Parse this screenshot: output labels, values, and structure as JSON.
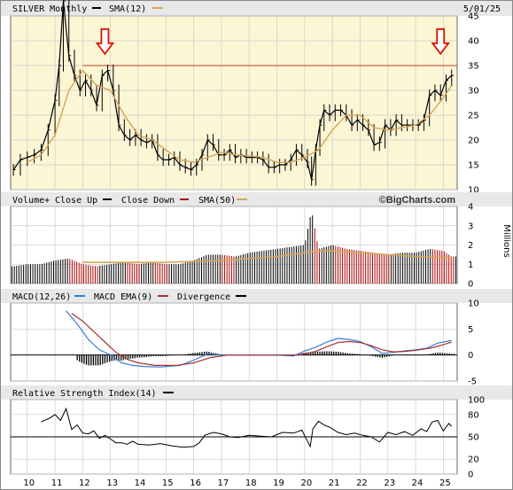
{
  "chart_data": [
    {
      "type": "line",
      "panel": "price",
      "title": "SILVER Monthly",
      "legend": [
        "SILVER Monthly",
        "SMA(12)"
      ],
      "date": "5/01/25",
      "ylim": [
        10,
        45
      ],
      "yticks": [
        10,
        15,
        20,
        25,
        30,
        35,
        40,
        45
      ],
      "xlim": [
        2009.4,
        2025.5
      ],
      "x_tick_labels": [
        "10",
        "11",
        "12",
        "13",
        "14",
        "15",
        "16",
        "17",
        "18",
        "19",
        "20",
        "21",
        "22",
        "23",
        "24",
        "25"
      ],
      "resistance_level": 35,
      "annotations": [
        {
          "type": "arrow",
          "x": 2012.8,
          "y": 37
        },
        {
          "type": "arrow",
          "x": 2024.9,
          "y": 37
        }
      ],
      "series": [
        {
          "name": "SILVER Monthly",
          "color": "#000000",
          "x": [
            2009.5,
            2009.75,
            2010.0,
            2010.25,
            2010.5,
            2010.75,
            2011.0,
            2011.15,
            2011.3,
            2011.5,
            2011.7,
            2011.9,
            2012.1,
            2012.3,
            2012.5,
            2012.7,
            2012.9,
            2013.1,
            2013.3,
            2013.5,
            2013.7,
            2013.9,
            2014.1,
            2014.3,
            2014.5,
            2014.7,
            2014.9,
            2015.1,
            2015.3,
            2015.5,
            2015.7,
            2015.9,
            2016.1,
            2016.3,
            2016.5,
            2016.7,
            2016.9,
            2017.1,
            2017.3,
            2017.5,
            2017.7,
            2017.9,
            2018.1,
            2018.3,
            2018.5,
            2018.7,
            2018.9,
            2019.1,
            2019.3,
            2019.5,
            2019.7,
            2019.9,
            2020.1,
            2020.25,
            2020.4,
            2020.55,
            2020.7,
            2020.9,
            2021.1,
            2021.3,
            2021.5,
            2021.7,
            2021.9,
            2022.1,
            2022.3,
            2022.5,
            2022.7,
            2022.9,
            2023.1,
            2023.3,
            2023.5,
            2023.7,
            2023.9,
            2024.1,
            2024.3,
            2024.5,
            2024.7,
            2024.9,
            2025.1,
            2025.3
          ],
          "y": [
            14,
            16,
            16.5,
            17,
            18,
            22,
            28,
            35,
            48,
            37,
            33,
            30,
            32,
            30,
            27,
            33,
            34,
            30,
            23,
            21,
            20,
            21,
            20,
            19.5,
            20,
            17,
            16,
            16,
            16.5,
            15,
            14.5,
            14,
            15,
            17,
            20,
            19,
            17,
            17,
            18,
            16.5,
            17,
            16.5,
            16.5,
            16.5,
            16,
            14.5,
            14.5,
            15,
            15,
            16,
            18,
            17,
            15.5,
            12,
            18,
            23,
            26,
            25,
            26,
            26,
            25,
            23,
            24,
            23,
            22,
            19,
            19.5,
            23,
            22,
            24,
            23,
            23,
            23,
            23,
            24,
            29,
            30,
            29,
            32,
            33
          ]
        },
        {
          "name": "SMA(12)",
          "color": "#d4a559",
          "x": [
            2010.0,
            2010.5,
            2011.0,
            2011.5,
            2012.0,
            2012.5,
            2013.0,
            2013.5,
            2014.0,
            2014.5,
            2015.0,
            2015.5,
            2016.0,
            2016.5,
            2017.0,
            2017.5,
            2018.0,
            2018.5,
            2019.0,
            2019.5,
            2020.0,
            2020.5,
            2021.0,
            2021.5,
            2022.0,
            2022.5,
            2023.0,
            2023.5,
            2024.0,
            2024.5,
            2025.0,
            2025.3
          ],
          "y": [
            15.5,
            17,
            21,
            30,
            34,
            31,
            30,
            25,
            21,
            20,
            18,
            16,
            15.5,
            16.5,
            17.5,
            17,
            16.8,
            16.5,
            15.5,
            15.5,
            16.5,
            18,
            22,
            25,
            25,
            22.5,
            22,
            22.5,
            23,
            25,
            28.5,
            31
          ]
        }
      ]
    },
    {
      "type": "bar",
      "panel": "volume",
      "title": "Volume+",
      "legend": [
        "Close Up",
        "Close Down",
        "SMA(50)"
      ],
      "watermark": "©BigCharts.com",
      "ylabel": "Millions",
      "ylim": [
        0,
        4
      ],
      "yticks": [
        0,
        1,
        2,
        3,
        4
      ],
      "xlim": [
        2009.4,
        2025.5
      ],
      "series": [
        {
          "name": "Volume",
          "color": "#000000",
          "x": [
            2009.5,
            2010.0,
            2010.5,
            2011.0,
            2011.5,
            2012.0,
            2012.5,
            2013.0,
            2013.5,
            2014.0,
            2014.5,
            2015.0,
            2015.5,
            2016.0,
            2016.5,
            2017.0,
            2017.5,
            2018.0,
            2018.5,
            2019.0,
            2019.5,
            2020.0,
            2020.25,
            2020.5,
            2021.0,
            2021.5,
            2022.0,
            2022.5,
            2023.0,
            2023.5,
            2024.0,
            2024.5,
            2025.0,
            2025.3
          ],
          "y": [
            0.9,
            1.0,
            1.0,
            1.2,
            1.3,
            1.0,
            0.9,
            1.0,
            1.1,
            1.0,
            1.1,
            1.0,
            1.0,
            1.2,
            1.5,
            1.5,
            1.4,
            1.6,
            1.7,
            1.8,
            1.9,
            2.0,
            3.8,
            1.8,
            2.0,
            1.8,
            1.7,
            1.6,
            1.5,
            1.6,
            1.6,
            1.8,
            1.7,
            1.4
          ]
        },
        {
          "name": "SMA(50)",
          "color": "#d4a559",
          "x": [
            2012.0,
            2013.0,
            2014.0,
            2015.0,
            2016.0,
            2017.0,
            2018.0,
            2019.0,
            2020.0,
            2020.5,
            2021.0,
            2022.0,
            2023.0,
            2024.0,
            2025.0,
            2025.3
          ],
          "y": [
            1.1,
            1.1,
            1.1,
            1.1,
            1.15,
            1.2,
            1.3,
            1.4,
            1.6,
            1.7,
            1.7,
            1.6,
            1.5,
            1.4,
            1.35,
            1.35
          ]
        }
      ]
    },
    {
      "type": "line",
      "panel": "macd",
      "title": "MACD(12,26)",
      "legend": [
        "MACD(12,26)",
        "MACD EMA(9)",
        "Divergence"
      ],
      "ylim": [
        -5,
        10
      ],
      "yticks": [
        -5,
        0,
        5,
        10
      ],
      "xlim": [
        2009.4,
        2025.5
      ],
      "series": [
        {
          "name": "MACD(12,26)",
          "color": "#3a7bd5",
          "x": [
            2011.4,
            2011.8,
            2012.2,
            2012.6,
            2013.0,
            2013.4,
            2013.8,
            2014.2,
            2014.8,
            2015.5,
            2016.0,
            2016.5,
            2017.0,
            2018.0,
            2019.0,
            2019.6,
            2020.0,
            2020.4,
            2020.8,
            2021.2,
            2021.6,
            2022.0,
            2022.4,
            2022.8,
            2023.2,
            2023.6,
            2024.0,
            2024.4,
            2024.8,
            2025.3
          ],
          "y": [
            8.5,
            6,
            3,
            1,
            0,
            -1.5,
            -2,
            -2.2,
            -2.3,
            -2,
            -1,
            0.2,
            0,
            0,
            0,
            -0.2,
            0.8,
            1.5,
            2.5,
            3.2,
            3.0,
            2.6,
            1.6,
            0.3,
            0.5,
            0.8,
            1.0,
            1.3,
            2.3,
            2.8
          ]
        },
        {
          "name": "MACD EMA(9)",
          "color": "#a83232",
          "x": [
            2011.6,
            2012.0,
            2012.4,
            2012.8,
            2013.2,
            2013.6,
            2014.0,
            2014.6,
            2015.4,
            2016.0,
            2016.6,
            2017.2,
            2018.0,
            2019.0,
            2019.8,
            2020.4,
            2020.8,
            2021.2,
            2021.6,
            2022.0,
            2022.4,
            2022.8,
            2023.2,
            2023.6,
            2024.0,
            2024.6,
            2025.0,
            2025.3
          ],
          "y": [
            8,
            6.5,
            4.5,
            2.5,
            0.5,
            -0.8,
            -1.5,
            -2,
            -2,
            -1.5,
            -0.5,
            0,
            0,
            0,
            0,
            0.7,
            1.6,
            2.4,
            2.6,
            2.4,
            1.8,
            1.0,
            0.6,
            0.7,
            0.9,
            1.4,
            2.0,
            2.5
          ]
        }
      ]
    },
    {
      "type": "line",
      "panel": "rsi",
      "title": "Relative Strength Index(14)",
      "ylim": [
        0,
        100
      ],
      "yticks": [
        0,
        20,
        50,
        80,
        100
      ],
      "xlim": [
        2009.4,
        2025.5
      ],
      "series": [
        {
          "name": "Relative Strength Index(14)",
          "color": "#000000",
          "x": [
            2010.5,
            2010.8,
            2011.0,
            2011.2,
            2011.4,
            2011.6,
            2011.8,
            2012.0,
            2012.2,
            2012.4,
            2012.6,
            2012.8,
            2013.0,
            2013.2,
            2013.4,
            2013.6,
            2013.8,
            2014.0,
            2014.4,
            2014.8,
            2015.2,
            2015.6,
            2016.0,
            2016.2,
            2016.4,
            2016.7,
            2017.0,
            2017.3,
            2017.6,
            2018.0,
            2018.4,
            2018.8,
            2019.2,
            2019.6,
            2019.9,
            2020.2,
            2020.3,
            2020.5,
            2020.7,
            2020.9,
            2021.2,
            2021.5,
            2021.8,
            2022.1,
            2022.4,
            2022.7,
            2023.0,
            2023.3,
            2023.6,
            2023.9,
            2024.2,
            2024.4,
            2024.6,
            2024.8,
            2025.0,
            2025.2,
            2025.3
          ],
          "y": [
            70,
            75,
            80,
            72,
            88,
            60,
            66,
            55,
            54,
            58,
            48,
            52,
            47,
            42,
            42,
            40,
            44,
            40,
            39,
            41,
            38,
            36,
            37,
            42,
            52,
            56,
            54,
            50,
            49,
            52,
            51,
            50,
            56,
            55,
            59,
            37,
            61,
            71,
            66,
            63,
            56,
            53,
            55,
            52,
            50,
            43,
            56,
            53,
            57,
            52,
            61,
            57,
            70,
            72,
            58,
            68,
            64
          ]
        }
      ]
    }
  ]
}
